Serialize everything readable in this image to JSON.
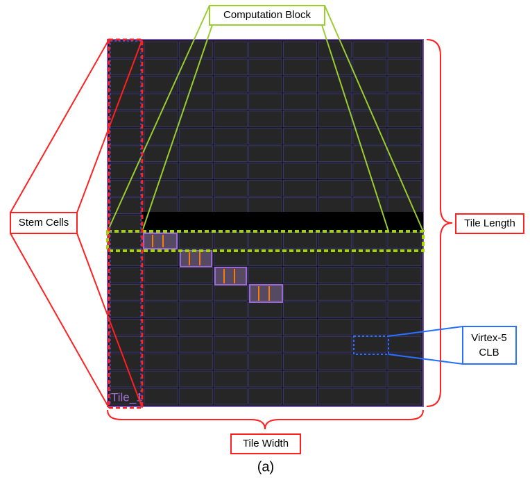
{
  "labels": {
    "computation_block": "Computation Block",
    "stem_cells": "Stem Cells",
    "tile_length": "Tile Length",
    "tile_width": "Tile Width",
    "clb": [
      "Virtex-5",
      "CLB"
    ],
    "tile_name": "Tile_1",
    "caption": "(a)"
  }
}
